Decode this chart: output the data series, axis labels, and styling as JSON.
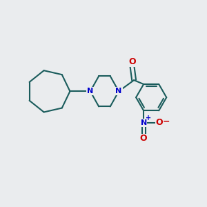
{
  "background_color": "#eaecee",
  "bond_color": "#1a5c5c",
  "N_color": "#0000cc",
  "O_color": "#cc0000",
  "line_width": 1.5,
  "figsize": [
    3.0,
    3.0
  ],
  "dpi": 100,
  "xlim": [
    0,
    10
  ],
  "ylim": [
    0,
    10
  ]
}
